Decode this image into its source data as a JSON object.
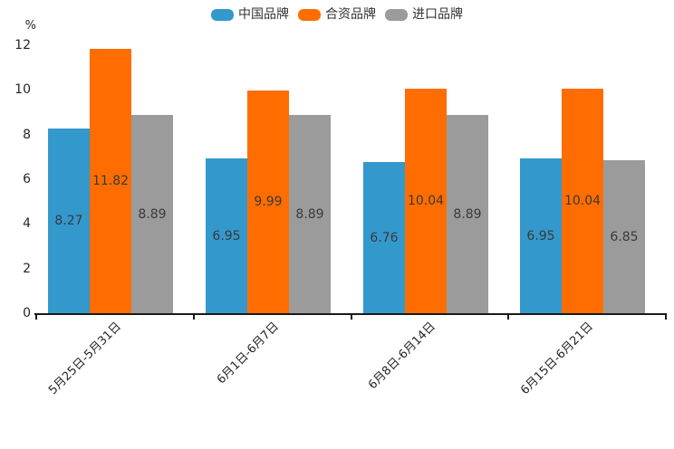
{
  "chart_data": {
    "type": "bar",
    "title": "",
    "unit_label": "%",
    "xlabel": "",
    "ylabel": "%",
    "categories": [
      "5月25日-5月31日",
      "6月1日-6月7日",
      "6月8日-6月14日",
      "6月15日-6月21日"
    ],
    "series": [
      {
        "name": "中国品牌",
        "color": "#3398CC",
        "values": [
          8.27,
          6.95,
          6.76,
          6.95
        ]
      },
      {
        "name": "合资品牌",
        "color": "#FF6D00",
        "values": [
          11.82,
          9.99,
          10.04,
          10.04
        ]
      },
      {
        "name": "进口品牌",
        "color": "#9B9B9B",
        "values": [
          8.89,
          8.89,
          8.89,
          6.85
        ]
      }
    ],
    "ylim": [
      0,
      12
    ],
    "yticks": [
      0,
      2,
      4,
      6,
      8,
      10,
      12
    ],
    "grid": false,
    "legend_position": "top",
    "value_label_position": "center-of-bar"
  },
  "colors": {
    "background": "#ffffff",
    "axis": "#1a1a1a",
    "tick_text": "#262626",
    "value_label_text": "#3a3a3a",
    "legend_text": "#333333"
  }
}
